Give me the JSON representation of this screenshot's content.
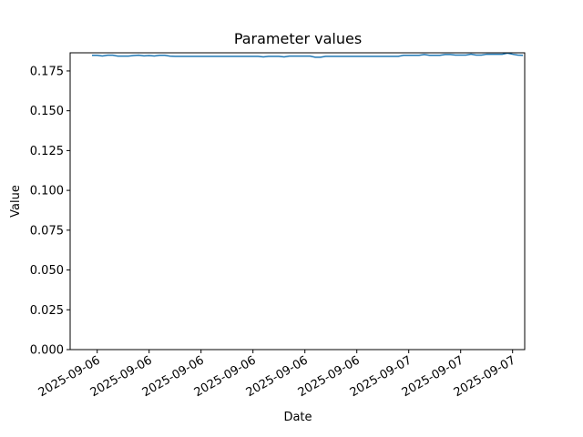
{
  "chart_data": {
    "type": "line",
    "title": "Parameter values",
    "x_label": "Date",
    "y_label": "Value",
    "categories": [
      null,
      "2025-09-06",
      null,
      null,
      null,
      null,
      null,
      null,
      null,
      null,
      null,
      "2025-09-06",
      null,
      null,
      null,
      null,
      null,
      null,
      null,
      null,
      null,
      "2025-09-06",
      null,
      null,
      null,
      null,
      null,
      null,
      null,
      null,
      null,
      "2025-09-06",
      null,
      null,
      null,
      null,
      null,
      null,
      null,
      null,
      null,
      "2025-09-06",
      null,
      null,
      null,
      null,
      null,
      null,
      null,
      null,
      null,
      "2025-09-06",
      null,
      null,
      null,
      null,
      null,
      null,
      null,
      null,
      null,
      "2025-09-07",
      null,
      null,
      null,
      null,
      null,
      null,
      null,
      null,
      null,
      "2025-09-07",
      null,
      null,
      null,
      null,
      null,
      null,
      null,
      null,
      null,
      "2025-09-07",
      null,
      null
    ],
    "series": [
      {
        "color": "#1f77b4",
        "values": [
          0.1848,
          0.1848,
          0.1844,
          0.1849,
          0.1849,
          0.1843,
          0.1843,
          0.1843,
          0.1847,
          0.1849,
          0.1845,
          0.1847,
          0.1844,
          0.1848,
          0.1848,
          0.1843,
          0.1842,
          0.1842,
          0.1842,
          0.1842,
          0.1842,
          0.1842,
          0.1842,
          0.1842,
          0.1842,
          0.1842,
          0.1842,
          0.1842,
          0.1842,
          0.1842,
          0.1842,
          0.1842,
          0.1842,
          0.1838,
          0.1842,
          0.1842,
          0.1842,
          0.1838,
          0.1843,
          0.1843,
          0.1843,
          0.1843,
          0.1843,
          0.1836,
          0.1836,
          0.1842,
          0.1842,
          0.1842,
          0.1842,
          0.1842,
          0.1842,
          0.1842,
          0.1842,
          0.1842,
          0.1842,
          0.1842,
          0.1842,
          0.1842,
          0.1842,
          0.1842,
          0.1848,
          0.1848,
          0.1848,
          0.1848,
          0.1853,
          0.1848,
          0.1848,
          0.1848,
          0.1853,
          0.1853,
          0.185,
          0.185,
          0.185,
          0.1855,
          0.185,
          0.185,
          0.1855,
          0.1855,
          0.1855,
          0.1855,
          0.1862,
          0.1855,
          0.185,
          0.1848
        ]
      }
    ],
    "ylim": [
      0,
      0.1864
    ],
    "yticks": [
      {
        "value": 0,
        "label": "0.000"
      },
      {
        "value": 0.025,
        "label": "0.025"
      },
      {
        "value": 0.05,
        "label": "0.050"
      },
      {
        "value": 0.075,
        "label": "0.075"
      },
      {
        "value": 0.1,
        "label": "0.100"
      },
      {
        "value": 0.125,
        "label": "0.125"
      },
      {
        "value": 0.15,
        "label": "0.150"
      },
      {
        "value": 0.175,
        "label": "0.175"
      }
    ],
    "grid": false
  }
}
